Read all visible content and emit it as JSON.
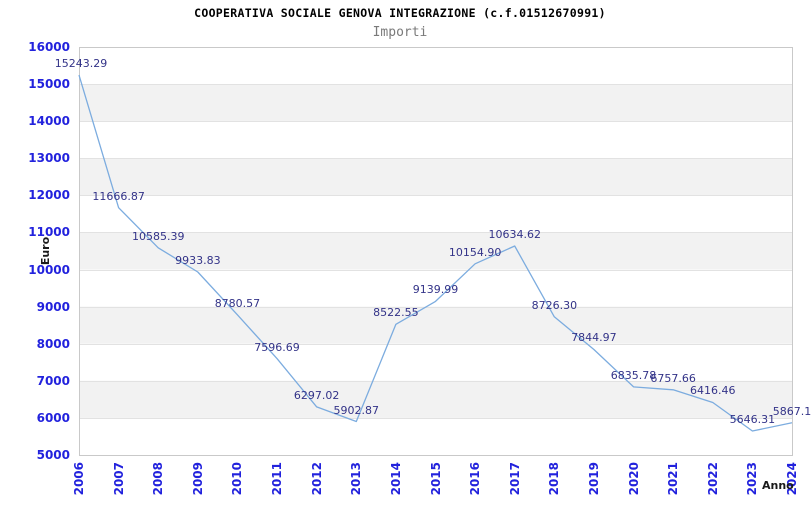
{
  "header": {
    "title": "COOPERATIVA SOCIALE GENOVA INTEGRAZIONE (c.f.01512670991)",
    "subtitle": "Importi"
  },
  "chart_data": {
    "type": "line",
    "title": "COOPERATIVA SOCIALE GENOVA INTEGRAZIONE (c.f.01512670991)",
    "subtitle": "Importi",
    "xlabel": "Anno",
    "ylabel": "Euro",
    "categories": [
      "2006",
      "2007",
      "2008",
      "2009",
      "2010",
      "2011",
      "2012",
      "2013",
      "2014",
      "2015",
      "2016",
      "2017",
      "2018",
      "2019",
      "2020",
      "2021",
      "2022",
      "2023",
      "2024"
    ],
    "series": [
      {
        "name": "Importi",
        "values": [
          15243.29,
          11666.87,
          10585.39,
          9933.83,
          8780.57,
          7596.69,
          6297.02,
          5902.87,
          8522.55,
          9139.99,
          10154.9,
          10634.62,
          8726.3,
          7844.97,
          6835.78,
          6757.66,
          6416.46,
          5646.31,
          5867.1
        ]
      }
    ],
    "point_labels": [
      "15243.29",
      "11666.87",
      "10585.39",
      "9933.83",
      "8780.57",
      "7596.69",
      "6297.02",
      "5902.87",
      "8522.55",
      "9139.99",
      "10154.90",
      "10634.62",
      "8726.30",
      "7844.97",
      "6835.78",
      "6757.66",
      "6416.46",
      "5646.31",
      "5867.1"
    ],
    "ylim": [
      5000,
      16000
    ],
    "y_ticks": [
      16000,
      15000,
      14000,
      13000,
      12000,
      11000,
      10000,
      9000,
      8000,
      7000,
      6000,
      5000
    ],
    "grid": true,
    "band_fill": "alternating horizontal bands",
    "legend": "none"
  },
  "colors": {
    "line": "#7cacdf",
    "tick_label": "#2222dd",
    "point_label": "#333388",
    "band": "#f2f2f2",
    "grid": "#e2e2e2",
    "frame": "#c9c9c9",
    "title": "#000000",
    "subtitle": "#7a7a7a",
    "axis_label": "#1a1a1a"
  }
}
